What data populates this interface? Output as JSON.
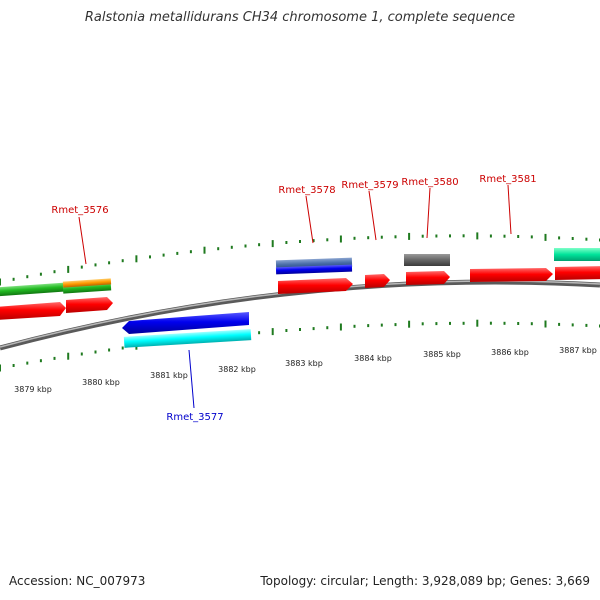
{
  "title": "Ralstonia metallidurans CH34 chromosome 1, complete sequence",
  "footer": {
    "accession": "Accession: NC_007973",
    "stats": "Topology: circular; Length: 3,928,089 bp; Genes: 3,669"
  },
  "colors": {
    "tick": "#1f7a1f",
    "backbone": "#8a8a8a",
    "label_forward": "#cc0000",
    "label_reverse": "#0000cc"
  },
  "kbp_labels": [
    "3879 kbp",
    "3880 kbp",
    "3881 kbp",
    "3882 kbp",
    "3883 kbp",
    "3884 kbp",
    "3885 kbp",
    "3886 kbp",
    "3887 kbp"
  ],
  "genes": [
    {
      "label": "Rmet_3576",
      "color": "#cc0000"
    },
    {
      "label": "Rmet_3577",
      "color": "#0000cc"
    },
    {
      "label": "Rmet_3578",
      "color": "#cc0000"
    },
    {
      "label": "Rmet_3579",
      "color": "#cc0000"
    },
    {
      "label": "Rmet_3580",
      "color": "#cc0000"
    },
    {
      "label": "Rmet_3581",
      "color": "#cc0000"
    }
  ]
}
